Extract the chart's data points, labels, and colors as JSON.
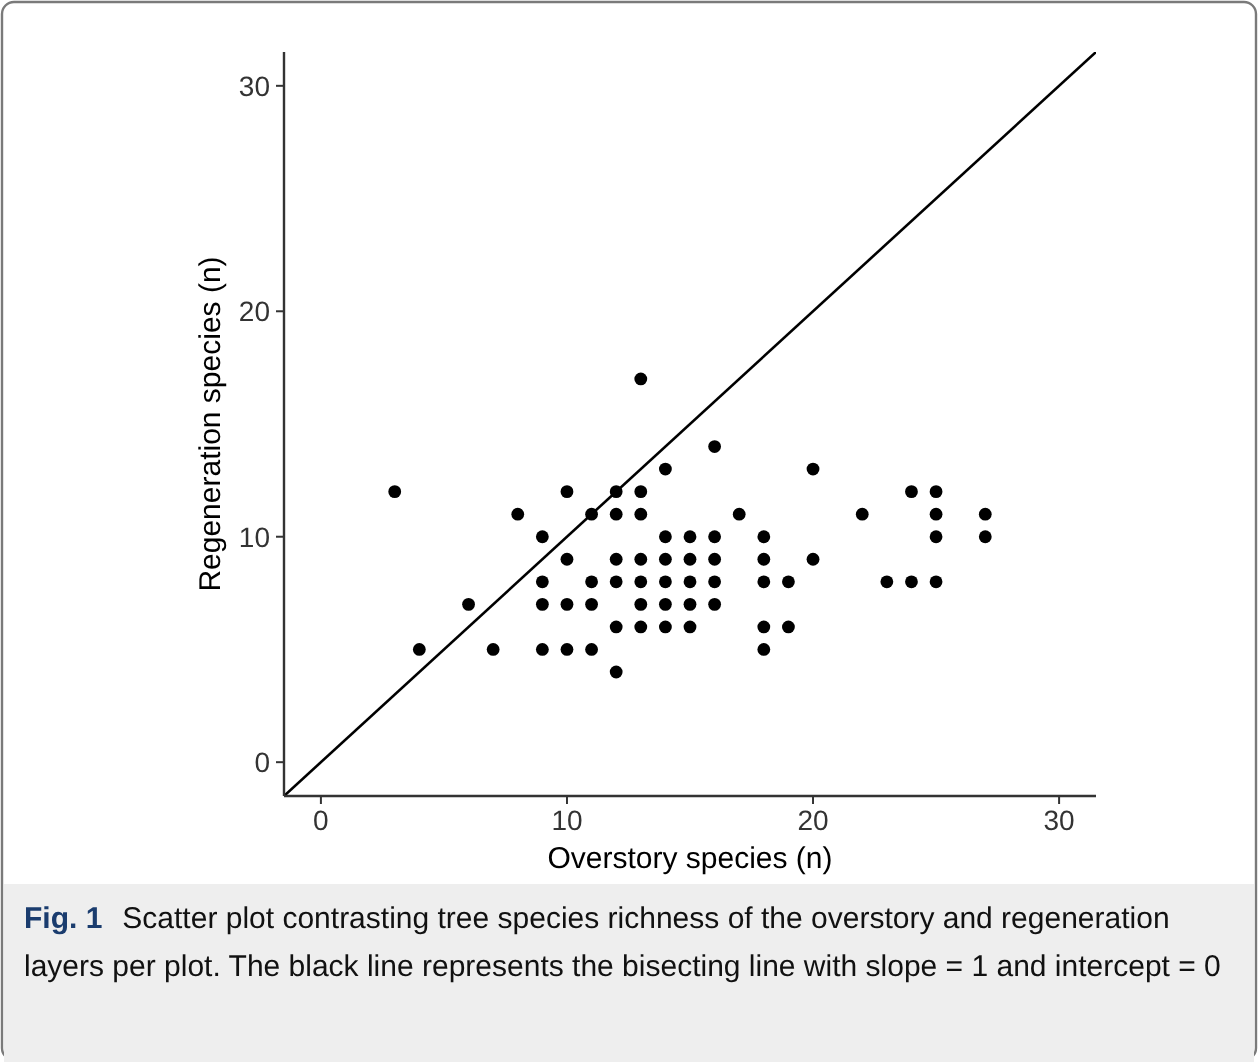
{
  "chart_data": {
    "type": "scatter",
    "xlabel": "Overstory species (n)",
    "ylabel": "Regeneration species (n)",
    "xlim": [
      -1.5,
      31.5
    ],
    "ylim": [
      -1.5,
      31.5
    ],
    "xticks": [
      0,
      10,
      20,
      30
    ],
    "yticks": [
      0,
      10,
      20,
      30
    ],
    "grid": false,
    "marker": "circle",
    "annotations": [
      "Fig. 1",
      "Scatter plot contrasting tree species richness of the overstory and regeneration layers per plot. The black line represents the bisecting line with slope = 1 and intercept = 0"
    ],
    "series": [
      {
        "color": "#000000",
        "x": [
          3,
          4,
          6,
          7,
          8,
          9,
          9,
          9,
          9,
          10,
          10,
          10,
          10,
          11,
          11,
          11,
          11,
          12,
          12,
          12,
          12,
          12,
          12,
          13,
          13,
          13,
          13,
          13,
          13,
          13,
          14,
          14,
          14,
          14,
          14,
          14,
          15,
          15,
          15,
          15,
          15,
          16,
          16,
          16,
          16,
          16,
          17,
          18,
          18,
          18,
          18,
          18,
          19,
          19,
          20,
          20,
          22,
          23,
          24,
          24,
          25,
          25,
          25,
          25,
          27,
          27
        ],
        "values": [
          12,
          5,
          7,
          5,
          11,
          10,
          8,
          7,
          5,
          12,
          9,
          7,
          5,
          11,
          8,
          7,
          5,
          12,
          11,
          9,
          8,
          6,
          4,
          17,
          12,
          11,
          9,
          8,
          7,
          6,
          13,
          10,
          9,
          8,
          7,
          6,
          10,
          9,
          8,
          7,
          6,
          14,
          10,
          9,
          8,
          7,
          11,
          10,
          9,
          8,
          6,
          5,
          8,
          6,
          13,
          9,
          11,
          8,
          12,
          8,
          12,
          11,
          10,
          8,
          11,
          10
        ]
      },
      {
        "type": "line",
        "color": "#000000",
        "marker": "none",
        "line_style": "solid",
        "x": [
          -1.5,
          31.5
        ],
        "values": [
          -1.5,
          31.5
        ]
      }
    ]
  }
}
